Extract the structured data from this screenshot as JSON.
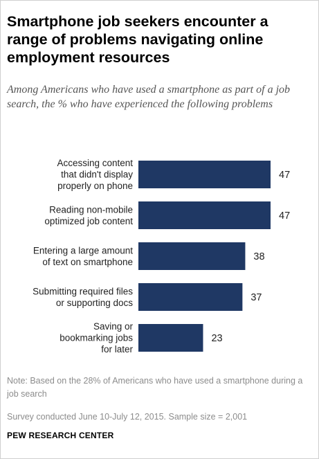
{
  "header": {
    "title": "Smartphone job seekers encounter a range of problems navigating online employment resources",
    "subtitle": "Among Americans who have used a smartphone as part of a job search, the % who have experienced the following problems"
  },
  "chart_data": {
    "type": "bar",
    "orientation": "horizontal",
    "categories": [
      [
        "Accessing content",
        "that didn't display",
        "properly on phone"
      ],
      [
        "Reading non-mobile",
        "optimized job content"
      ],
      [
        "Entering a large amount",
        "of text on smartphone"
      ],
      [
        "Submitting required files",
        "or supporting docs"
      ],
      [
        "Saving or",
        "bookmarking jobs",
        "for later"
      ]
    ],
    "values": [
      47,
      47,
      38,
      37,
      23
    ],
    "value_labels": [
      "47",
      "47",
      "38",
      "37",
      "23"
    ],
    "bar_color": "#1f3864",
    "xlim": [
      0,
      47
    ],
    "grid": false,
    "legend": "none"
  },
  "footer": {
    "note": "Note: Based on the 28% of Americans who have used a smartphone during a job search",
    "source": "Survey conducted June 10-July 12, 2015. Sample size = 2,001",
    "organization": "PEW RESEARCH CENTER"
  }
}
